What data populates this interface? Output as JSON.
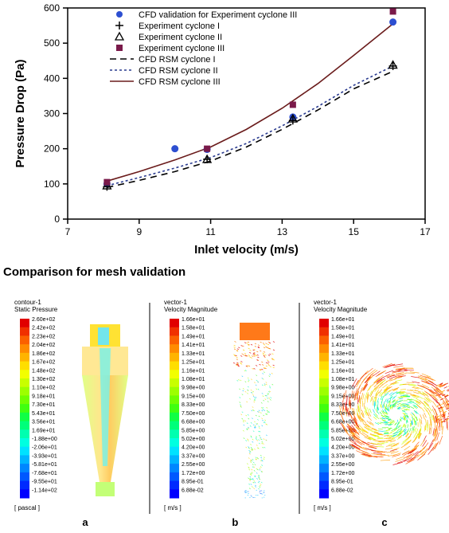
{
  "chart": {
    "type": "scatter+line",
    "background_color": "#ffffff",
    "border_color": "#000000",
    "tick_fontsize": 11,
    "axislabel_fontsize": 14,
    "legend_fontsize": 11,
    "xlabel": "Inlet velocity (m/s)",
    "ylabel": "Pressure  Drop (Pa)",
    "xlim": [
      7,
      17
    ],
    "ylim": [
      0,
      600
    ],
    "xtick_step": 2,
    "ytick_step": 100,
    "xticks": [
      "7",
      "9",
      "11",
      "13",
      "15",
      "17"
    ],
    "yticks": [
      "0",
      "100",
      "200",
      "300",
      "400",
      "500",
      "600"
    ],
    "legend": [
      {
        "label": "CFD validation for Experiment cyclone III",
        "style": "marker",
        "shape": "circle-filled",
        "color": "#2d4fd1"
      },
      {
        "label": "Experiment cyclone I",
        "style": "marker",
        "shape": "plus",
        "color": "#000000"
      },
      {
        "label": "Experiment cyclone II",
        "style": "marker",
        "shape": "triangle-open",
        "color": "#000000"
      },
      {
        "label": "Experiment cyclone III",
        "style": "marker",
        "shape": "square-filled",
        "color": "#7a1a4a"
      },
      {
        "label": "CFD RSM cyclone I",
        "style": "line",
        "dash": "long-dash",
        "color": "#000000"
      },
      {
        "label": "CFD RSM cyclone II",
        "style": "line",
        "dash": "short-dash",
        "color": "#2a3b8f"
      },
      {
        "label": "CFD RSM cyclone III",
        "style": "line",
        "dash": "solid",
        "color": "#6a1b1b"
      }
    ],
    "series": {
      "cfd_validation_circle": {
        "x": [
          8.1,
          10.0,
          10.9,
          13.3,
          16.1
        ],
        "y": [
          100,
          200,
          198,
          290,
          560
        ],
        "color": "#2d4fd1"
      },
      "exp_plus": {
        "x": [
          8.1,
          10.9,
          13.3,
          16.1
        ],
        "y": [
          92,
          170,
          280,
          435
        ],
        "color": "#000000"
      },
      "exp_triangle_open": {
        "x": [
          8.1,
          10.9,
          13.3,
          16.1
        ],
        "y": [
          95,
          170,
          285,
          438
        ],
        "color": "#000000"
      },
      "exp_square": {
        "x": [
          8.1,
          10.9,
          13.3,
          16.1
        ],
        "y": [
          105,
          200,
          325,
          590
        ],
        "color": "#7a1a4a"
      },
      "cfd_rsm_I_dash": {
        "x": [
          8.1,
          9.0,
          10.0,
          11.0,
          12.0,
          13.0,
          14.0,
          15.0,
          16.1
        ],
        "y": [
          90,
          110,
          135,
          165,
          205,
          255,
          310,
          370,
          420
        ],
        "color": "#000000",
        "dash": "8,6"
      },
      "cfd_rsm_II_dot": {
        "x": [
          8.1,
          9.0,
          10.0,
          11.0,
          12.0,
          13.0,
          14.0,
          15.0,
          16.1
        ],
        "y": [
          95,
          118,
          145,
          175,
          215,
          265,
          320,
          380,
          435
        ],
        "color": "#2a3b8f",
        "dash": "3,3"
      },
      "cfd_rsm_III_solid": {
        "x": [
          8.1,
          9.0,
          10.0,
          11.0,
          12.0,
          13.0,
          14.0,
          15.0,
          16.1
        ],
        "y": [
          108,
          135,
          168,
          205,
          255,
          315,
          385,
          465,
          555
        ],
        "color": "#6a1b1b",
        "dash": "none"
      }
    }
  },
  "section_title": "Comparison for mesh validation",
  "panels": {
    "a": {
      "title_line1": "contour-1",
      "title_line2": "Static Pressure",
      "unit": "[ pascal ]",
      "letter": "a",
      "colorbar_values": [
        "2.60e+02",
        "2.42e+02",
        "2.23e+02",
        "2.04e+02",
        "1.86e+02",
        "1.67e+02",
        "1.48e+02",
        "1.30e+02",
        "1.10e+02",
        "9.18e+01",
        "7.30e+01",
        "5.43e+01",
        "3.56e+01",
        "1.69e+01",
        "-1.88e+00",
        "-2.06e+01",
        "-3.93e+01",
        "-5.81e+01",
        "-7.68e+01",
        "-9.55e+01",
        "-1.14e+02"
      ],
      "colorbar_colors": [
        "#e10000",
        "#f03000",
        "#fb6000",
        "#ff8b00",
        "#ffb400",
        "#ffde00",
        "#f2ff00",
        "#c8ff00",
        "#9dff00",
        "#70ff00",
        "#40ff10",
        "#10ff45",
        "#00ff7a",
        "#00ffb0",
        "#00ffe0",
        "#00e2ff",
        "#00b4ff",
        "#0086ff",
        "#0058ff",
        "#002aff",
        "#0000ff"
      ]
    },
    "b": {
      "title_line1": "vector-1",
      "title_line2": "Velocity Magnitude",
      "unit": "[ m/s ]",
      "letter": "b",
      "colorbar_values": [
        "1.66e+01",
        "1.58e+01",
        "1.49e+01",
        "1.41e+01",
        "1.33e+01",
        "1.25e+01",
        "1.16e+01",
        "1.08e+01",
        "9.98e+00",
        "9.15e+00",
        "8.33e+00",
        "7.50e+00",
        "6.68e+00",
        "5.85e+00",
        "5.02e+00",
        "4.20e+00",
        "3.37e+00",
        "2.55e+00",
        "1.72e+00",
        "8.95e-01",
        "6.88e-02"
      ],
      "colorbar_colors": [
        "#e10000",
        "#f03000",
        "#fb6000",
        "#ff8b00",
        "#ffb400",
        "#ffde00",
        "#f2ff00",
        "#c8ff00",
        "#9dff00",
        "#70ff00",
        "#40ff10",
        "#10ff45",
        "#00ff7a",
        "#00ffb0",
        "#00ffe0",
        "#00e2ff",
        "#00b4ff",
        "#0086ff",
        "#0058ff",
        "#002aff",
        "#0000ff"
      ]
    },
    "c": {
      "title_line1": "vector-1",
      "title_line2": "Velocity Magnitude",
      "unit": "[ m/s ]",
      "letter": "c",
      "colorbar_values": [
        "1.66e+01",
        "1.58e+01",
        "1.49e+01",
        "1.41e+01",
        "1.33e+01",
        "1.25e+01",
        "1.16e+01",
        "1.08e+01",
        "9.98e+00",
        "9.15e+00",
        "8.33e+00",
        "7.50e+00",
        "6.68e+00",
        "5.85e+00",
        "5.02e+00",
        "4.20e+00",
        "3.37e+00",
        "2.55e+00",
        "1.72e+00",
        "8.95e-01",
        "6.88e-02"
      ],
      "colorbar_colors": [
        "#e10000",
        "#f03000",
        "#fb6000",
        "#ff8b00",
        "#ffb400",
        "#ffde00",
        "#f2ff00",
        "#c8ff00",
        "#9dff00",
        "#70ff00",
        "#40ff10",
        "#10ff45",
        "#00ff7a",
        "#00ffb0",
        "#00ffe0",
        "#00e2ff",
        "#00b4ff",
        "#0086ff",
        "#0058ff",
        "#002aff",
        "#0000ff"
      ]
    }
  }
}
